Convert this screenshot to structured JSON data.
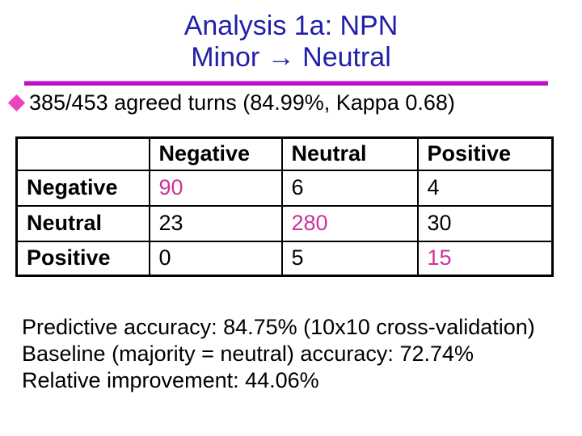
{
  "slide": {
    "title_line1": "Analysis 1a: NPN",
    "title_line2": "Minor → Neutral",
    "bullet": {
      "icon": "diamond-bullet-icon",
      "text": "385/453 agreed turns (84.99%, Kappa 0.68)"
    },
    "table": {
      "col_headers": [
        "",
        "Negative",
        "Neutral",
        "Positive"
      ],
      "highlight_diagonal": true,
      "rows": [
        {
          "label": "Negative",
          "cells": [
            "90",
            "6",
            "4"
          ]
        },
        {
          "label": "Neutral",
          "cells": [
            "23",
            "280",
            "30"
          ]
        },
        {
          "label": "Positive",
          "cells": [
            "0",
            "5",
            "15"
          ]
        }
      ]
    },
    "stats": [
      "Predictive accuracy: 84.75% (10x10 cross-validation)",
      "Baseline (majority = neutral) accuracy: 72.74%",
      "Relative improvement: 44.06%"
    ]
  },
  "colors": {
    "title_blue": "#2121a8",
    "rule_magenta": "#bf10cb",
    "bullet_pink": "#ee44bb",
    "highlight_magenta": "#cc3399",
    "text_black": "#000000",
    "background": "#ffffff"
  }
}
